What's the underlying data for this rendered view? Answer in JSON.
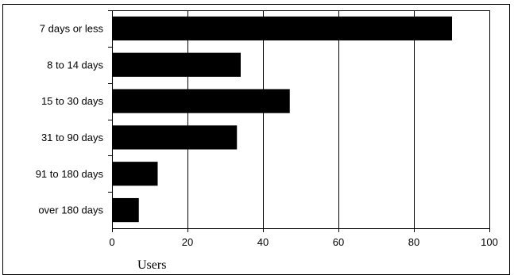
{
  "chart_data": {
    "type": "bar",
    "orientation": "horizontal",
    "categories": [
      "7 days or less",
      "8 to 14 days",
      "15 to 30 days",
      "31 to 90 days",
      "91 to 180 days",
      "over 180 days"
    ],
    "values": [
      90,
      34,
      47,
      33,
      12,
      7
    ],
    "xlabel": "Users",
    "xlim": [
      0,
      100
    ],
    "xticks": [
      0,
      20,
      40,
      60,
      80,
      100
    ],
    "grid": "vertical",
    "bar_color": "#000000",
    "legend": "none"
  }
}
